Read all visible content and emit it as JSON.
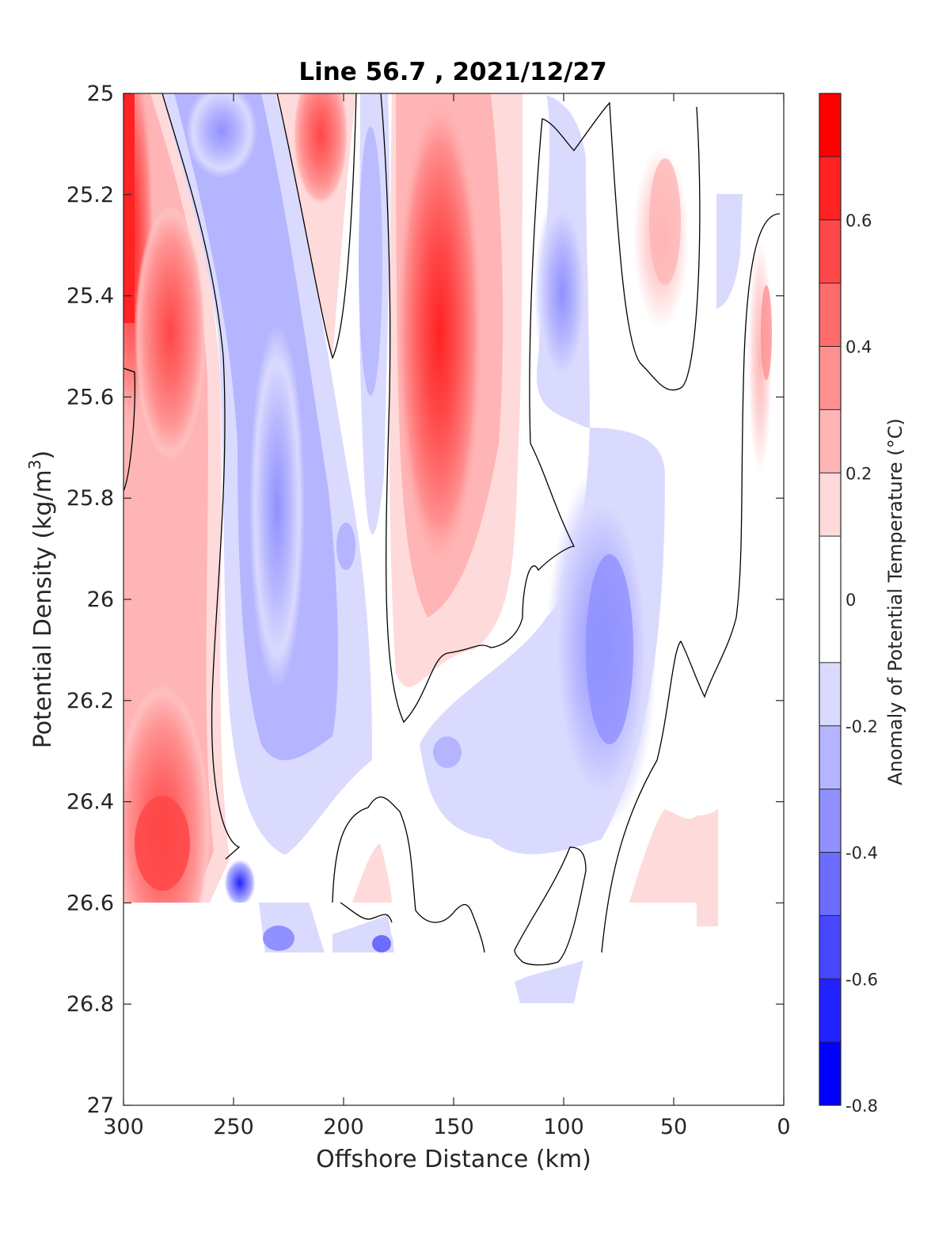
{
  "chart_data": {
    "type": "contour",
    "title": "Line 56.7 , 2021/12/27",
    "xlabel": "Offshore Distance (km)",
    "ylabel_main": "Potential Density (kg/m",
    "ylabel_sup": "3",
    "ylabel_close": ")",
    "x_axis": {
      "min": 0,
      "max": 300,
      "reversed": true,
      "ticks": [
        {
          "v": 300,
          "label": "300"
        },
        {
          "v": 250,
          "label": "250"
        },
        {
          "v": 200,
          "label": "200"
        },
        {
          "v": 150,
          "label": "150"
        },
        {
          "v": 100,
          "label": "100"
        },
        {
          "v": 50,
          "label": "50"
        },
        {
          "v": 0,
          "label": "0"
        }
      ]
    },
    "y_axis": {
      "min": 25,
      "max": 27,
      "reversed": true,
      "ticks": [
        {
          "v": 25,
          "label": "25"
        },
        {
          "v": 25.2,
          "label": "25.2"
        },
        {
          "v": 25.4,
          "label": "25.4"
        },
        {
          "v": 25.6,
          "label": "25.6"
        },
        {
          "v": 25.8,
          "label": "25.8"
        },
        {
          "v": 26,
          "label": "26"
        },
        {
          "v": 26.2,
          "label": "26.2"
        },
        {
          "v": 26.4,
          "label": "26.4"
        },
        {
          "v": 26.6,
          "label": "26.6"
        },
        {
          "v": 26.8,
          "label": "26.8"
        },
        {
          "v": 27,
          "label": "27"
        }
      ]
    },
    "colorbar": {
      "title": "Anomaly of Potential Temperature (°C)",
      "min": -0.8,
      "max": 0.8,
      "levels": [
        {
          "lo": -0.8,
          "hi": -0.7,
          "color": "#0000ff"
        },
        {
          "lo": -0.7,
          "hi": -0.6,
          "color": "#2222ff"
        },
        {
          "lo": -0.6,
          "hi": -0.5,
          "color": "#4747ff"
        },
        {
          "lo": -0.5,
          "hi": -0.4,
          "color": "#6c6cff"
        },
        {
          "lo": -0.4,
          "hi": -0.3,
          "color": "#9090ff"
        },
        {
          "lo": -0.3,
          "hi": -0.2,
          "color": "#b5b5ff"
        },
        {
          "lo": -0.2,
          "hi": -0.1,
          "color": "#dadaff"
        },
        {
          "lo": -0.1,
          "hi": 0.1,
          "color": "#ffffff"
        },
        {
          "lo": 0.1,
          "hi": 0.2,
          "color": "#ffdada"
        },
        {
          "lo": 0.2,
          "hi": 0.3,
          "color": "#ffb5b5"
        },
        {
          "lo": 0.3,
          "hi": 0.4,
          "color": "#ff9090"
        },
        {
          "lo": 0.4,
          "hi": 0.5,
          "color": "#ff6c6c"
        },
        {
          "lo": 0.5,
          "hi": 0.6,
          "color": "#ff4747"
        },
        {
          "lo": 0.6,
          "hi": 0.7,
          "color": "#ff2222"
        },
        {
          "lo": 0.7,
          "hi": 0.8,
          "color": "#ff0000"
        }
      ],
      "ticks": [
        {
          "v": 0.6,
          "label": "0.6"
        },
        {
          "v": 0.4,
          "label": "0.4"
        },
        {
          "v": 0.2,
          "label": "0.2"
        },
        {
          "v": 0,
          "label": "0"
        },
        {
          "v": -0.2,
          "label": "-0.2"
        },
        {
          "v": -0.4,
          "label": "-0.4"
        },
        {
          "v": -0.6,
          "label": "-0.6"
        },
        {
          "v": -0.8,
          "label": "-0.8"
        }
      ]
    },
    "anomaly_features": [
      {
        "x": 296,
        "y": 25.2,
        "rx": 5,
        "ry": 0.28,
        "value": 0.7
      },
      {
        "x": 275,
        "y": 25.45,
        "rx": 14,
        "ry": 0.22,
        "value": 0.45
      },
      {
        "x": 278,
        "y": 26.45,
        "rx": 18,
        "ry": 0.18,
        "value": 0.55
      },
      {
        "x": 222,
        "y": 25.85,
        "rx": 22,
        "ry": 0.4,
        "value": -0.35
      },
      {
        "x": 240,
        "y": 25.05,
        "rx": 22,
        "ry": 0.12,
        "value": -0.35
      },
      {
        "x": 160,
        "y": 25.45,
        "rx": 18,
        "ry": 0.4,
        "value": 0.5
      },
      {
        "x": 100,
        "y": 25.4,
        "rx": 14,
        "ry": 0.2,
        "value": -0.3
      },
      {
        "x": 80,
        "y": 26.1,
        "rx": 22,
        "ry": 0.35,
        "value": -0.3
      },
      {
        "x": 60,
        "y": 25.3,
        "rx": 16,
        "ry": 0.18,
        "value": 0.2
      },
      {
        "x": 205,
        "y": 25.12,
        "rx": 16,
        "ry": 0.14,
        "value": 0.3
      },
      {
        "x": 10,
        "y": 25.5,
        "rx": 6,
        "ry": 0.15,
        "value": 0.25
      },
      {
        "x": 245,
        "y": 26.55,
        "rx": 6,
        "ry": 0.05,
        "value": -0.55
      }
    ]
  }
}
